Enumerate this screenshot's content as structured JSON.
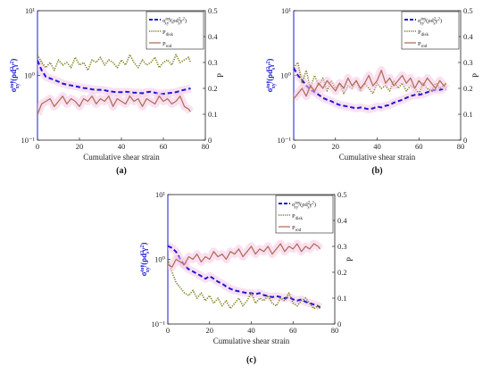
{
  "chart_data": [
    {
      "panel_label": "(a)",
      "type": "line",
      "xlabel": "Cumulative shear strain",
      "ylabel_left": "σ_xy^tot/(ρd_s²γ̇²)",
      "ylabel_right": "P",
      "xlim": [
        0,
        80
      ],
      "ylim_left": [
        0.1,
        10
      ],
      "ylim_left_scale": "log",
      "ylim_right": [
        0,
        0.5
      ],
      "x_ticks": [
        "0",
        "20",
        "40",
        "60",
        "80"
      ],
      "y_left_ticks": [
        "10⁻¹",
        "10⁰",
        "10¹"
      ],
      "y_right_ticks": [
        "0",
        "0.1",
        "0.2",
        "0.3",
        "0.4",
        "0.5"
      ],
      "legend_position": "top-right",
      "series": [
        {
          "name": "σ_xy^tot/(ρd_s²γ̇²)",
          "axis": "left",
          "color": "#1a1ad6",
          "style": "dashed",
          "x": [
            0,
            2,
            4,
            6,
            8,
            10,
            12,
            14,
            16,
            18,
            20,
            22,
            24,
            26,
            28,
            30,
            32,
            34,
            36,
            38,
            40,
            42,
            44,
            46,
            48,
            50,
            52,
            54,
            56,
            58,
            60,
            62,
            64,
            66,
            68,
            70,
            72,
            73
          ],
          "y": [
            1.7,
            1.2,
            0.95,
            0.9,
            0.85,
            0.8,
            0.75,
            0.72,
            0.7,
            0.68,
            0.66,
            0.64,
            0.63,
            0.61,
            0.6,
            0.6,
            0.59,
            0.57,
            0.56,
            0.55,
            0.55,
            0.56,
            0.55,
            0.54,
            0.54,
            0.53,
            0.55,
            0.56,
            0.54,
            0.52,
            0.52,
            0.53,
            0.54,
            0.55,
            0.58,
            0.6,
            0.62,
            0.63
          ]
        },
        {
          "name": "P_disk",
          "axis": "right",
          "color": "#7a7a1a",
          "style": "dotted",
          "x": [
            0,
            2,
            4,
            6,
            8,
            10,
            12,
            14,
            16,
            18,
            20,
            22,
            24,
            26,
            28,
            30,
            32,
            34,
            36,
            38,
            40,
            42,
            44,
            46,
            48,
            50,
            52,
            54,
            56,
            58,
            60,
            62,
            64,
            66,
            68,
            70,
            72,
            73
          ],
          "y": [
            0.33,
            0.3,
            0.28,
            0.3,
            0.27,
            0.31,
            0.29,
            0.3,
            0.28,
            0.32,
            0.29,
            0.3,
            0.27,
            0.31,
            0.3,
            0.32,
            0.29,
            0.31,
            0.3,
            0.28,
            0.31,
            0.29,
            0.33,
            0.3,
            0.28,
            0.31,
            0.29,
            0.3,
            0.32,
            0.28,
            0.3,
            0.31,
            0.29,
            0.33,
            0.3,
            0.31,
            0.32,
            0.3
          ]
        },
        {
          "name": "P_rod",
          "axis": "right",
          "color": "#b0725a",
          "style": "solid",
          "x": [
            0,
            2,
            4,
            6,
            8,
            10,
            12,
            14,
            16,
            18,
            20,
            22,
            24,
            26,
            28,
            30,
            32,
            34,
            36,
            38,
            40,
            42,
            44,
            46,
            48,
            50,
            52,
            54,
            56,
            58,
            60,
            62,
            64,
            66,
            68,
            70,
            72,
            73
          ],
          "y": [
            0.1,
            0.14,
            0.15,
            0.16,
            0.13,
            0.15,
            0.17,
            0.14,
            0.16,
            0.15,
            0.13,
            0.16,
            0.15,
            0.17,
            0.14,
            0.16,
            0.15,
            0.17,
            0.13,
            0.16,
            0.15,
            0.14,
            0.17,
            0.15,
            0.16,
            0.13,
            0.16,
            0.15,
            0.14,
            0.17,
            0.15,
            0.16,
            0.14,
            0.15,
            0.17,
            0.13,
            0.12,
            0.11
          ]
        }
      ]
    },
    {
      "panel_label": "(b)",
      "type": "line",
      "xlabel": "Cumulative shear strain",
      "ylabel_left": "σ_xy^tot/(ρd_s²γ̇²)",
      "ylabel_right": "P",
      "xlim": [
        0,
        80
      ],
      "ylim_left": [
        0.1,
        10
      ],
      "ylim_left_scale": "log",
      "ylim_right": [
        0,
        0.5
      ],
      "x_ticks": [
        "0",
        "20",
        "40",
        "60",
        "80"
      ],
      "y_left_ticks": [
        "10⁻¹",
        "10⁰",
        "10¹"
      ],
      "y_right_ticks": [
        "0",
        "0.1",
        "0.2",
        "0.3",
        "0.4",
        "0.5"
      ],
      "legend_position": "top-right",
      "series": [
        {
          "name": "σ_xy^tot/(ρd_s²γ̇²)",
          "axis": "left",
          "color": "#1a1ad6",
          "style": "dashed",
          "x": [
            0,
            2,
            4,
            6,
            8,
            10,
            12,
            14,
            16,
            18,
            20,
            22,
            24,
            26,
            28,
            30,
            32,
            34,
            36,
            38,
            40,
            42,
            44,
            46,
            48,
            50,
            52,
            54,
            56,
            58,
            60,
            62,
            64,
            66,
            68,
            70,
            72,
            73
          ],
          "y": [
            1.3,
            1.0,
            0.85,
            0.7,
            0.6,
            0.55,
            0.5,
            0.45,
            0.42,
            0.4,
            0.37,
            0.35,
            0.34,
            0.33,
            0.32,
            0.31,
            0.32,
            0.31,
            0.3,
            0.31,
            0.33,
            0.32,
            0.34,
            0.35,
            0.38,
            0.4,
            0.42,
            0.45,
            0.48,
            0.5,
            0.5,
            0.52,
            0.55,
            0.58,
            0.6,
            0.6,
            0.62,
            0.6
          ]
        },
        {
          "name": "P_disk",
          "axis": "right",
          "color": "#7a7a1a",
          "style": "dotted",
          "x": [
            0,
            2,
            4,
            6,
            8,
            10,
            12,
            14,
            16,
            18,
            20,
            22,
            24,
            26,
            28,
            30,
            32,
            34,
            36,
            38,
            40,
            42,
            44,
            46,
            48,
            50,
            52,
            54,
            56,
            58,
            60,
            62,
            64,
            66,
            68,
            70,
            72,
            73
          ],
          "y": [
            0.28,
            0.3,
            0.22,
            0.27,
            0.2,
            0.25,
            0.21,
            0.24,
            0.19,
            0.23,
            0.2,
            0.22,
            0.18,
            0.21,
            0.2,
            0.23,
            0.19,
            0.22,
            0.2,
            0.18,
            0.22,
            0.2,
            0.21,
            0.19,
            0.23,
            0.2,
            0.22,
            0.19,
            0.21,
            0.2,
            0.18,
            0.22,
            0.2,
            0.19,
            0.22,
            0.2,
            0.21,
            0.2
          ]
        },
        {
          "name": "P_rod",
          "axis": "right",
          "color": "#b0725a",
          "style": "solid",
          "x": [
            0,
            2,
            4,
            6,
            8,
            10,
            12,
            14,
            16,
            18,
            20,
            22,
            24,
            26,
            28,
            30,
            32,
            34,
            36,
            38,
            40,
            42,
            44,
            46,
            48,
            50,
            52,
            54,
            56,
            58,
            60,
            62,
            64,
            66,
            68,
            70,
            72,
            73
          ],
          "y": [
            0.16,
            0.18,
            0.2,
            0.17,
            0.21,
            0.19,
            0.22,
            0.2,
            0.23,
            0.21,
            0.19,
            0.22,
            0.2,
            0.24,
            0.21,
            0.23,
            0.2,
            0.22,
            0.25,
            0.21,
            0.23,
            0.27,
            0.22,
            0.24,
            0.21,
            0.23,
            0.25,
            0.22,
            0.24,
            0.2,
            0.23,
            0.21,
            0.24,
            0.22,
            0.2,
            0.23,
            0.21,
            0.22
          ]
        }
      ]
    },
    {
      "panel_label": "(c)",
      "type": "line",
      "xlabel": "Cumulative shear strain",
      "ylabel_left": "σ_xy^tot/(ρd_s²γ̇²)",
      "ylabel_right": "P",
      "xlim": [
        0,
        80
      ],
      "ylim_left": [
        0.1,
        10
      ],
      "ylim_left_scale": "log",
      "ylim_right": [
        0,
        0.5
      ],
      "x_ticks": [
        "0",
        "20",
        "40",
        "60",
        "80"
      ],
      "y_left_ticks": [
        "10⁻¹",
        "10⁰",
        "10¹"
      ],
      "y_right_ticks": [
        "0",
        "0.1",
        "0.2",
        "0.3",
        "0.4",
        "0.5"
      ],
      "legend_position": "top-right",
      "series": [
        {
          "name": "σ_xy^tot/(ρd_s²γ̇²)",
          "axis": "left",
          "color": "#1a1ad6",
          "style": "dashed",
          "x": [
            0,
            2,
            4,
            6,
            8,
            10,
            12,
            14,
            16,
            18,
            20,
            22,
            24,
            26,
            28,
            30,
            32,
            34,
            36,
            38,
            40,
            42,
            44,
            46,
            48,
            50,
            52,
            54,
            56,
            58,
            60,
            62,
            64,
            66,
            68,
            70,
            72,
            73
          ],
          "y": [
            1.6,
            1.5,
            1.3,
            1.0,
            0.8,
            0.7,
            0.65,
            0.6,
            0.55,
            0.5,
            0.55,
            0.5,
            0.45,
            0.42,
            0.38,
            0.35,
            0.33,
            0.32,
            0.31,
            0.3,
            0.3,
            0.29,
            0.3,
            0.28,
            0.27,
            0.26,
            0.27,
            0.26,
            0.25,
            0.26,
            0.24,
            0.23,
            0.24,
            0.22,
            0.21,
            0.2,
            0.19,
            0.18
          ]
        },
        {
          "name": "P_disk",
          "axis": "right",
          "color": "#7a7a1a",
          "style": "dotted",
          "x": [
            0,
            2,
            4,
            6,
            8,
            10,
            12,
            14,
            16,
            18,
            20,
            22,
            24,
            26,
            28,
            30,
            32,
            34,
            36,
            38,
            40,
            42,
            44,
            46,
            48,
            50,
            52,
            54,
            56,
            58,
            60,
            62,
            64,
            66,
            68,
            70,
            72,
            73
          ],
          "y": [
            0.25,
            0.2,
            0.16,
            0.14,
            0.12,
            0.11,
            0.13,
            0.1,
            0.12,
            0.09,
            0.11,
            0.08,
            0.1,
            0.07,
            0.09,
            0.06,
            0.08,
            0.1,
            0.07,
            0.09,
            0.12,
            0.08,
            0.1,
            0.09,
            0.11,
            0.08,
            0.07,
            0.1,
            0.09,
            0.12,
            0.08,
            0.07,
            0.09,
            0.1,
            0.08,
            0.06,
            0.07,
            0.06
          ]
        },
        {
          "name": "P_rod",
          "axis": "right",
          "color": "#b0725a",
          "style": "solid",
          "x": [
            0,
            2,
            4,
            6,
            8,
            10,
            12,
            14,
            16,
            18,
            20,
            22,
            24,
            26,
            28,
            30,
            32,
            34,
            36,
            38,
            40,
            42,
            44,
            46,
            48,
            50,
            52,
            54,
            56,
            58,
            60,
            62,
            64,
            66,
            68,
            70,
            72,
            73
          ],
          "y": [
            0.23,
            0.22,
            0.25,
            0.24,
            0.23,
            0.26,
            0.25,
            0.27,
            0.24,
            0.26,
            0.25,
            0.28,
            0.26,
            0.27,
            0.25,
            0.28,
            0.27,
            0.29,
            0.26,
            0.28,
            0.3,
            0.27,
            0.29,
            0.28,
            0.3,
            0.27,
            0.29,
            0.31,
            0.28,
            0.3,
            0.29,
            0.31,
            0.28,
            0.3,
            0.29,
            0.31,
            0.3,
            0.29
          ]
        }
      ]
    }
  ],
  "legend": {
    "sigma_main": "σ",
    "sigma_sub": "xy",
    "sigma_sup": "tot",
    "sigma_den_open": "/(ρd",
    "sigma_den_sub": "s",
    "sigma_den_sup": "2",
    "sigma_den_gamma": "γ",
    "sigma_den_gamma_sup": "2",
    "sigma_den_close": ")",
    "p_main": "P",
    "disk_sub": "disk",
    "rod_sub": "rod"
  },
  "colors": {
    "sigma": "#1a1ad6",
    "disk": "#7a7a1a",
    "rod": "#b0725a",
    "band": "#f5c7e5",
    "axis": "#222222"
  }
}
